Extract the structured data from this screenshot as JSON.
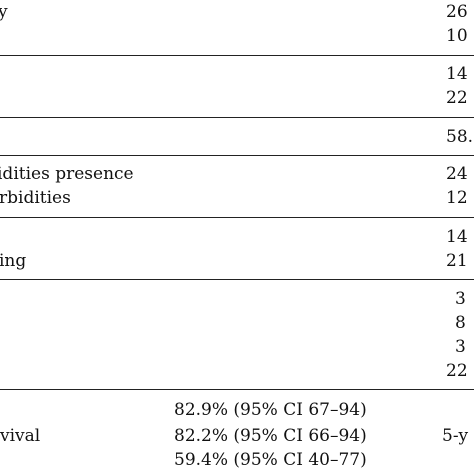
{
  "rows": {
    "r1_label": "y",
    "r1_value": "26",
    "r2_value": "10",
    "r3_value": "14",
    "r4_value": "22",
    "r5_value": "58.",
    "r6_label": "idities presence",
    "r6_value": "24",
    "r7_label": "rbidities",
    "r7_value": "12",
    "r8_value": "14",
    "r9_label": "ing",
    "r9_value": "21",
    "r10_value": "3",
    "r11_value": "8",
    "r12_value": "3",
    "r13_value": "22"
  },
  "survival": {
    "label": "vival",
    "v1": "82.9% (95% CI 67–94)",
    "v2": "82.2% (95% CI 66–94)",
    "v3": "59.4% (95% CI 40–77)",
    "right": "5-y"
  }
}
